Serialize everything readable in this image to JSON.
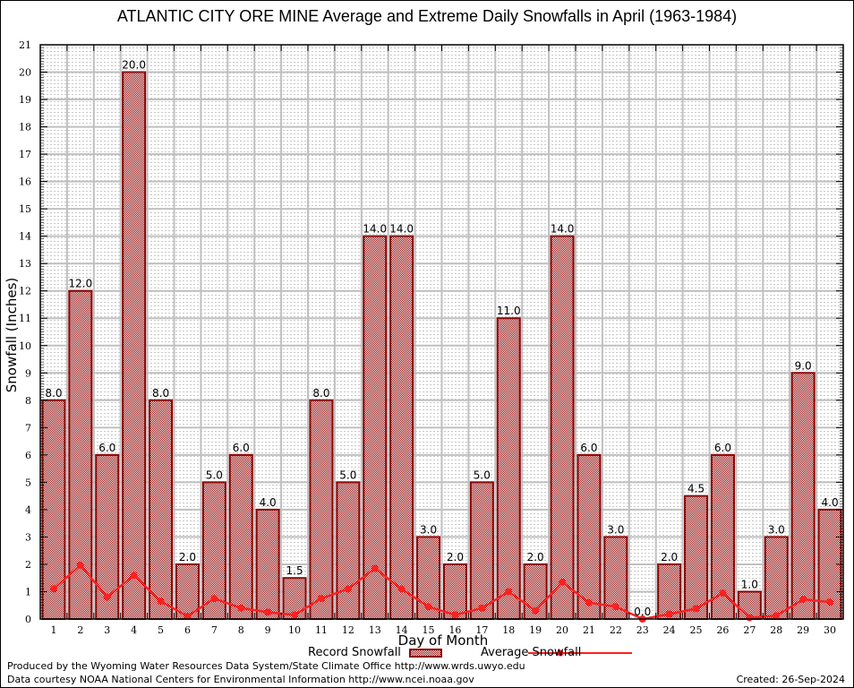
{
  "chart_data": {
    "type": "bar",
    "title": "ATLANTIC CITY ORE MINE Average and Extreme Daily Snowfalls in April (1963-1984)",
    "xlabel": "Day of Month",
    "ylabel": "Snowfall (Inches)",
    "ylim": [
      0,
      21
    ],
    "yticks": [
      0,
      1,
      2,
      3,
      4,
      5,
      6,
      7,
      8,
      9,
      10,
      11,
      12,
      13,
      14,
      15,
      16,
      17,
      18,
      19,
      20,
      21
    ],
    "grid": true,
    "categories": [
      "1",
      "2",
      "3",
      "4",
      "5",
      "6",
      "7",
      "8",
      "9",
      "10",
      "11",
      "12",
      "13",
      "14",
      "15",
      "16",
      "17",
      "18",
      "19",
      "20",
      "21",
      "22",
      "23",
      "24",
      "25",
      "26",
      "27",
      "28",
      "29",
      "30"
    ],
    "series": [
      {
        "name": "Record Snowfall",
        "type": "bar",
        "values": [
          8.0,
          12.0,
          6.0,
          20.0,
          8.0,
          2.0,
          5.0,
          6.0,
          4.0,
          1.5,
          8.0,
          5.0,
          14.0,
          14.0,
          3.0,
          2.0,
          5.0,
          11.0,
          2.0,
          14.0,
          6.0,
          3.0,
          0.0,
          2.0,
          4.5,
          6.0,
          1.0,
          3.0,
          9.0,
          4.0
        ],
        "labels": [
          "8.0",
          "12.0",
          "6.0",
          "20.0",
          "8.0",
          "2.0",
          "5.0",
          "6.0",
          "4.0",
          "1.5",
          "8.0",
          "5.0",
          "14.0",
          "14.0",
          "3.0",
          "2.0",
          "5.0",
          "11.0",
          "2.0",
          "14.0",
          "6.0",
          "3.0",
          "0.0",
          "2.0",
          "4.5",
          "6.0",
          "1.0",
          "3.0",
          "9.0",
          "4.0"
        ],
        "color": "#8b0000"
      },
      {
        "name": "Average Snowfall",
        "type": "line",
        "values": [
          1.1,
          1.97,
          0.8,
          1.6,
          0.65,
          0.1,
          0.75,
          0.4,
          0.25,
          0.15,
          0.75,
          1.1,
          1.85,
          1.1,
          0.45,
          0.15,
          0.4,
          1.0,
          0.3,
          1.35,
          0.6,
          0.45,
          0.0,
          0.18,
          0.38,
          0.95,
          0.05,
          0.12,
          0.72,
          0.62
        ],
        "color": "#ff2020"
      }
    ],
    "legend": {
      "placement": "bottom",
      "entries": [
        "Record Snowfall",
        "Average Snowfall"
      ]
    }
  },
  "footer": {
    "produced_by": "Produced by the Wyoming Water Resources Data System/State Climate Office http://www.wrds.uwyo.edu",
    "data_courtesy": "Data courtesy NOAA National Centers for Environmental Information http://www.ncei.noaa.gov",
    "created": "Created:  26-Sep-2024"
  }
}
